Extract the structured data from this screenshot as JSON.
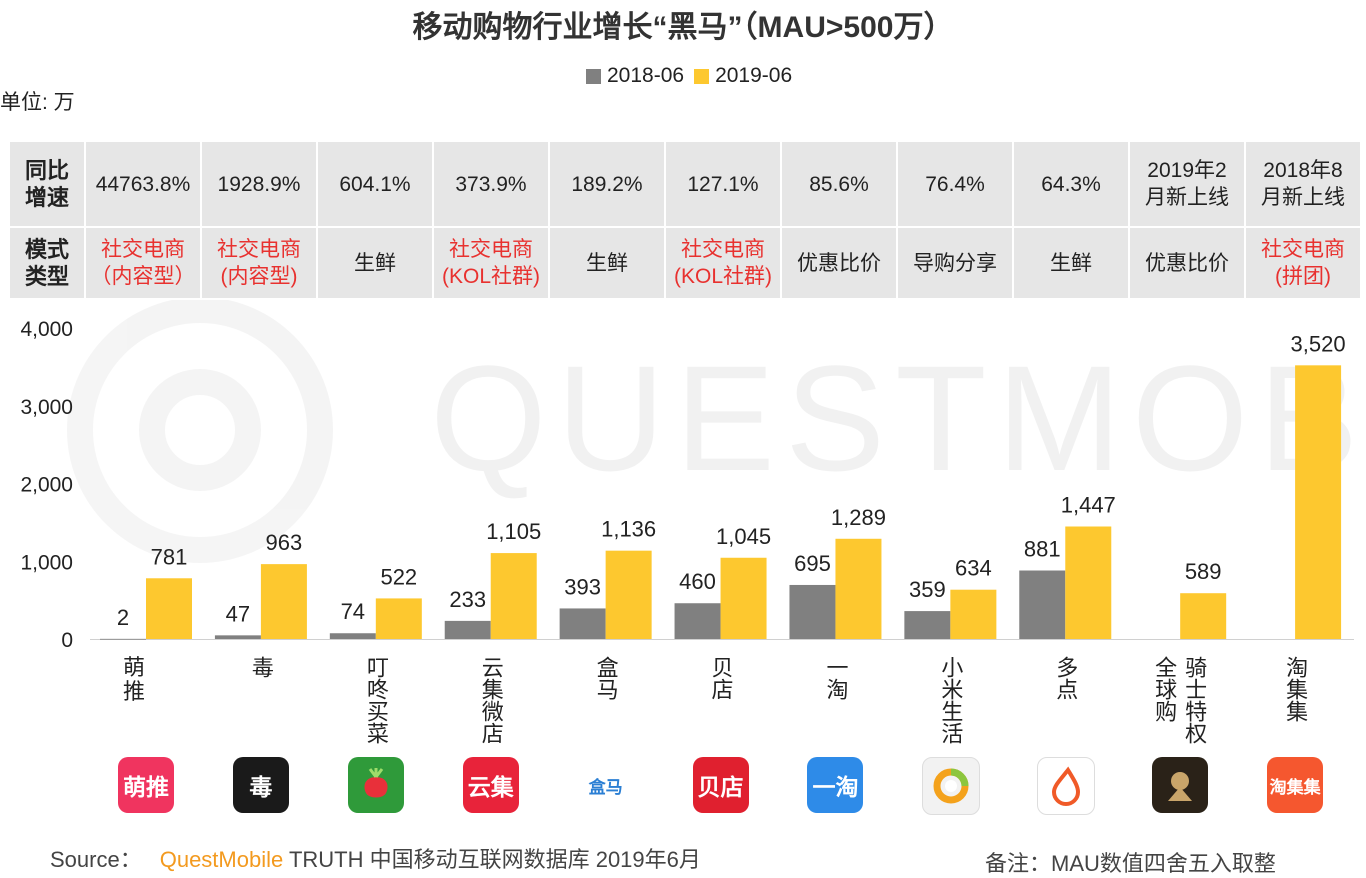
{
  "title": "移动购物行业增长“黑马”（MAU>500万）",
  "unit": "单位: 万",
  "legend": [
    "2018-06",
    "2019-06"
  ],
  "colors": {
    "s2018": "#808080",
    "s2019": "#fdc82f",
    "red": "#e8312f",
    "brand": "#f39a1f"
  },
  "table": {
    "row1_header": "同比增速",
    "row2_header": "模式类型",
    "growth": [
      "44763.8%",
      "1928.9%",
      "604.1%",
      "373.9%",
      "189.2%",
      "127.1%",
      "85.6%",
      "76.4%",
      "64.3%",
      "2019年2月新上线",
      "2018年8月新上线"
    ],
    "mode": [
      "社交电商（内容型）",
      "社交电商(内容型)",
      "生鲜",
      "社交电商(KOL社群)",
      "生鲜",
      "社交电商(KOL社群)",
      "优惠比价",
      "导购分享",
      "生鲜",
      "优惠比价",
      "社交电商(拼团)"
    ],
    "mode_red": [
      true,
      true,
      false,
      true,
      false,
      true,
      false,
      false,
      false,
      false,
      true
    ]
  },
  "icons": [
    {
      "name": "mengtui-icon",
      "text": "萌推",
      "bg": "#f0345f"
    },
    {
      "name": "du-icon",
      "text": "毒",
      "bg": "#1a1a1a"
    },
    {
      "name": "dingdong-icon",
      "text": "",
      "bg": "#2f9a3a"
    },
    {
      "name": "yunji-icon",
      "text": "云集",
      "bg": "#e8233a"
    },
    {
      "name": "hema-icon",
      "text": "盒马",
      "bg": "#ffffff"
    },
    {
      "name": "beidian-icon",
      "text": "贝店",
      "bg": "#e0202f"
    },
    {
      "name": "yitao-icon",
      "text": "一淘",
      "bg": "#2e8be8"
    },
    {
      "name": "xiaomi-youpin-icon",
      "text": "",
      "bg": "#f2f2f2"
    },
    {
      "name": "duodian-icon",
      "text": "",
      "bg": "#ffffff"
    },
    {
      "name": "qishi-icon",
      "text": "",
      "bg": "#2a2218"
    },
    {
      "name": "taojiji-icon",
      "text": "淘集集",
      "bg": "#f5572f"
    }
  ],
  "chart_data": {
    "type": "bar",
    "title": "移动购物行业增长“黑马”（MAU>500万）",
    "xlabel": "",
    "ylabel": "单位: 万",
    "ylim": [
      0,
      4000
    ],
    "yticks": [
      "0",
      "1,000",
      "2,000",
      "3,000",
      "4,000"
    ],
    "categories": [
      "萌推",
      "毒",
      "叮咚买菜",
      "云集微店",
      "盒马",
      "贝店",
      "一淘",
      "小米生活",
      "多点",
      "全球购骑士特权",
      "淘集集"
    ],
    "series": [
      {
        "name": "2018-06",
        "values": [
          2,
          47,
          74,
          233,
          393,
          460,
          695,
          359,
          881,
          null,
          null
        ],
        "labels": [
          "2",
          "47",
          "74",
          "233",
          "393",
          "460",
          "695",
          "359",
          "881",
          "",
          ""
        ]
      },
      {
        "name": "2019-06",
        "values": [
          781,
          963,
          522,
          1105,
          1136,
          1045,
          1289,
          634,
          1447,
          589,
          3520
        ],
        "labels": [
          "781",
          "963",
          "522",
          "1,105",
          "1,136",
          "1,045",
          "1,289",
          "634",
          "1,447",
          "589",
          "3,520"
        ]
      }
    ],
    "legend_position": "top-center"
  },
  "watermark": "QUESTMOBILE",
  "footer": {
    "source_label": "Source：",
    "source_brand": "QuestMobile",
    "source_rest": " TRUTH 中国移动互联网数据库 2019年6月",
    "note": "备注：MAU数值四舍五入取整"
  }
}
